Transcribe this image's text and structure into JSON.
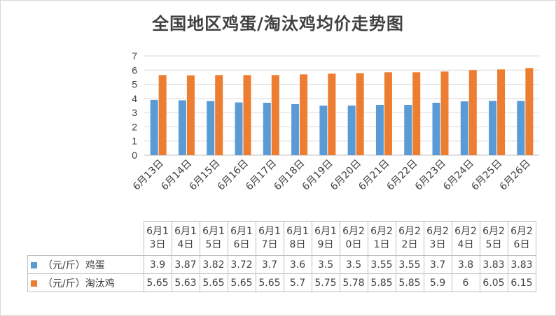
{
  "chart_data": {
    "type": "bar",
    "title": "全国地区鸡蛋/淘汰鸡均价走势图",
    "categories": [
      "6月13日",
      "6月14日",
      "6月15日",
      "6月16日",
      "6月17日",
      "6月18日",
      "6月19日",
      "6月20日",
      "6月21日",
      "6月22日",
      "6月23日",
      "6月24日",
      "6月25日",
      "6月26日"
    ],
    "table_headers": [
      "6月13日",
      "6月14日",
      "6月15日",
      "6月16日",
      "6月17日",
      "6月18日",
      "6月19日",
      "6月20日",
      "6月21日",
      "6月22日",
      "6月23日",
      "6月24日",
      "6月25日",
      "6月26日"
    ],
    "series": [
      {
        "name": "（元/斤）鸡蛋",
        "color": "#5b9bd5",
        "values": [
          3.9,
          3.87,
          3.82,
          3.72,
          3.7,
          3.6,
          3.5,
          3.5,
          3.55,
          3.55,
          3.7,
          3.8,
          3.83,
          3.83
        ],
        "labels": [
          "3.9",
          "3.87",
          "3.82",
          "3.72",
          "3.7",
          "3.6",
          "3.5",
          "3.5",
          "3.55",
          "3.55",
          "3.7",
          "3.8",
          "3.83",
          "3.83"
        ]
      },
      {
        "name": "（元/斤）淘汰鸡",
        "color": "#ed7d31",
        "values": [
          5.65,
          5.63,
          5.65,
          5.65,
          5.65,
          5.7,
          5.75,
          5.78,
          5.85,
          5.85,
          5.9,
          6,
          6.05,
          6.15
        ],
        "labels": [
          "5.65",
          "5.63",
          "5.65",
          "5.65",
          "5.65",
          "5.7",
          "5.75",
          "5.78",
          "5.85",
          "5.85",
          "5.9",
          "6",
          "6.05",
          "6.15"
        ]
      }
    ],
    "ylim": [
      0,
      7
    ],
    "yticks": [
      "0",
      "1",
      "2",
      "3",
      "4",
      "5",
      "6",
      "7"
    ],
    "grid": true,
    "legend": "data-table"
  }
}
